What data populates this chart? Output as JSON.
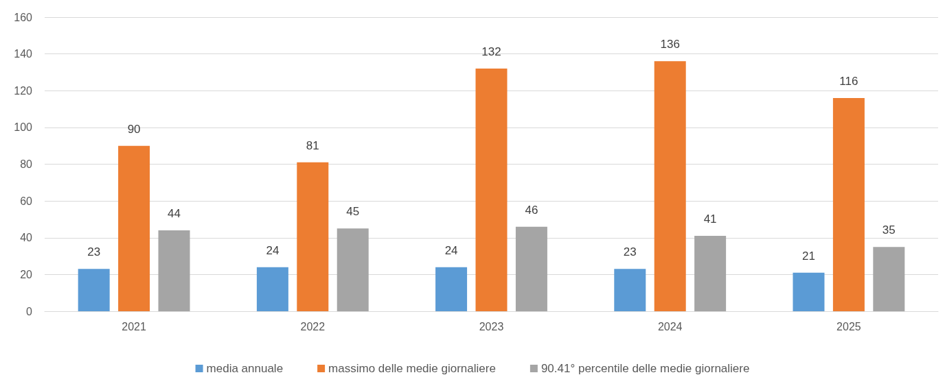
{
  "chart_data": {
    "type": "bar",
    "categories": [
      "2021",
      "2022",
      "2023",
      "2024",
      "2025"
    ],
    "series": [
      {
        "name": "media annuale",
        "color": "#5b9bd5",
        "values": [
          23,
          24,
          24,
          23,
          21
        ]
      },
      {
        "name": "massimo delle medie giornaliere",
        "color": "#ed7d31",
        "values": [
          90,
          81,
          132,
          136,
          116
        ]
      },
      {
        "name": "90.41° percentile delle medie giornaliere",
        "color": "#a5a5a5",
        "values": [
          44,
          45,
          46,
          41,
          35
        ]
      }
    ],
    "ylim": [
      0,
      160
    ],
    "yticks": [
      0,
      20,
      40,
      60,
      80,
      100,
      120,
      140,
      160
    ],
    "grid": "y",
    "legend": "bottom",
    "data_labels": true
  }
}
